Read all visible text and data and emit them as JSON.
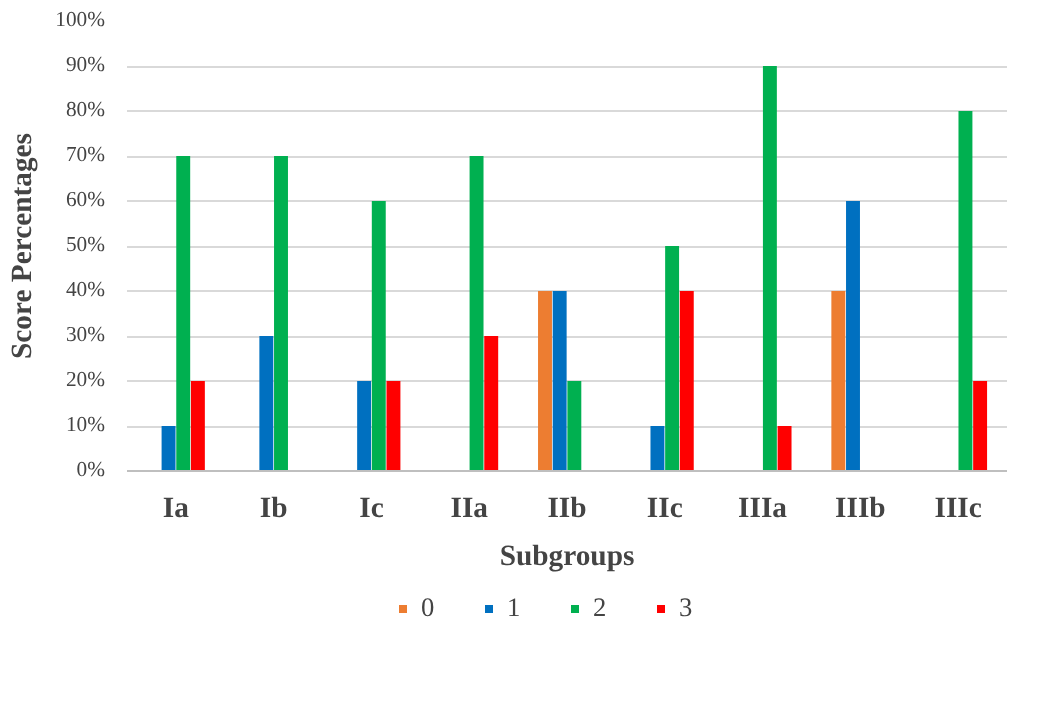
{
  "chart_data": {
    "type": "bar",
    "xlabel": "Subgroups",
    "ylabel": "Score Percentages",
    "categories": [
      "Ia",
      "Ib",
      "Ic",
      "IIa",
      "IIb",
      "IIc",
      "IIIa",
      "IIIb",
      "IIIc"
    ],
    "series": [
      {
        "name": "0",
        "color": "#ed7d31",
        "values": [
          0,
          0,
          0,
          0,
          40,
          0,
          0,
          40,
          0
        ]
      },
      {
        "name": "1",
        "color": "#0070c0",
        "values": [
          10,
          30,
          20,
          0,
          40,
          10,
          0,
          60,
          0
        ]
      },
      {
        "name": "2",
        "color": "#00b050",
        "values": [
          70,
          70,
          60,
          70,
          20,
          50,
          90,
          0,
          80
        ]
      },
      {
        "name": "3",
        "color": "#ff0000",
        "values": [
          20,
          0,
          20,
          30,
          0,
          40,
          10,
          0,
          20
        ]
      }
    ],
    "ylim": [
      0,
      100
    ],
    "yticks": [
      {
        "value": 0,
        "label": "0%"
      },
      {
        "value": 10,
        "label": "10%"
      },
      {
        "value": 20,
        "label": "20%"
      },
      {
        "value": 30,
        "label": "30%"
      },
      {
        "value": 40,
        "label": "40%"
      },
      {
        "value": 50,
        "label": "50%"
      },
      {
        "value": 60,
        "label": "60%"
      },
      {
        "value": 70,
        "label": "70%"
      },
      {
        "value": 80,
        "label": "80%"
      },
      {
        "value": 90,
        "label": "90%"
      },
      {
        "value": 100,
        "label": "100%"
      }
    ],
    "grid": "y",
    "legend": "bottom"
  }
}
